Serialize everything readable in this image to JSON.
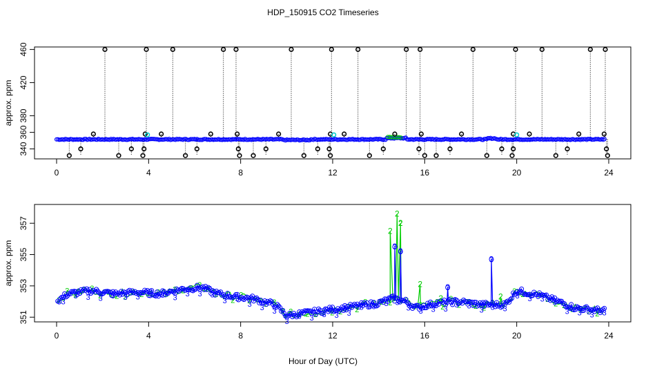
{
  "title": "HDP_150915  CO2 Timeseries",
  "xlabel": "Hour of Day (UTC)",
  "colors": {
    "outlier": "#000000",
    "series1": "#0000ff",
    "series2": "#00cc00",
    "highlight": "#00cccc",
    "axes": "#000000"
  },
  "chart_data": [
    {
      "type": "scatter",
      "name_tag": "top",
      "ylabel": "approx. ppm",
      "xlim": [
        -0.96,
        24.96
      ],
      "ylim": [
        328,
        463
      ],
      "x_ticks": [
        0,
        4,
        8,
        12,
        16,
        20,
        24
      ],
      "y_ticks": [
        340,
        360,
        380,
        420,
        460
      ],
      "baseline": 351.5,
      "outliers_high": [
        2.1,
        3.9,
        5.05,
        7.25,
        7.8,
        10.2,
        11.95,
        13.1,
        15.2,
        15.8,
        18.1,
        19.95,
        21.1,
        23.2,
        23.85
      ],
      "points_358": [
        1.6,
        3.85,
        4.55,
        6.7,
        7.85,
        9.65,
        11.9,
        12.5,
        14.7,
        15.85,
        17.6,
        19.85,
        20.55,
        22.7,
        23.8
      ],
      "points_340": [
        1.05,
        3.25,
        3.8,
        6.1,
        7.9,
        9.1,
        11.35,
        11.85,
        14.2,
        15.75,
        17.1,
        19.35,
        19.85,
        22.2,
        23.9
      ],
      "points_332": [
        0.55,
        2.7,
        3.75,
        5.6,
        7.95,
        8.55,
        10.75,
        11.9,
        13.6,
        16.0,
        16.5,
        18.7,
        19.8,
        21.7,
        23.95
      ],
      "cyan_points": [
        [
          3.95,
          357
        ],
        [
          12.05,
          357
        ],
        [
          20.0,
          357
        ]
      ]
    },
    {
      "type": "line",
      "name_tag": "bottom",
      "ylabel": "approx. ppm",
      "xlim": [
        -0.96,
        24.96
      ],
      "ylim": [
        350.7,
        358.2
      ],
      "x_ticks": [
        0,
        4,
        8,
        12,
        16,
        20,
        24
      ],
      "y_ticks": [
        351,
        353,
        355,
        357
      ],
      "series_label_1": "3",
      "series_label_2": "2",
      "series_1_profile": [
        [
          0,
          352.0
        ],
        [
          0.5,
          352.5
        ],
        [
          1.5,
          352.7
        ],
        [
          2.5,
          352.5
        ],
        [
          3.5,
          352.6
        ],
        [
          4.5,
          352.5
        ],
        [
          5.5,
          352.8
        ],
        [
          6.3,
          352.9
        ],
        [
          7.0,
          352.5
        ],
        [
          7.8,
          352.3
        ],
        [
          8.5,
          352.2
        ],
        [
          9.5,
          351.8
        ],
        [
          10.0,
          351.1
        ],
        [
          11.0,
          351.3
        ],
        [
          12.0,
          351.5
        ],
        [
          13.0,
          351.7
        ],
        [
          14.0,
          351.9
        ],
        [
          14.6,
          352.2
        ],
        [
          15.2,
          352.0
        ],
        [
          15.6,
          351.6
        ],
        [
          16.5,
          351.9
        ],
        [
          17.5,
          352.0
        ],
        [
          18.5,
          351.8
        ],
        [
          19.5,
          351.8
        ],
        [
          20.0,
          352.7
        ],
        [
          21.0,
          352.4
        ],
        [
          22.0,
          351.9
        ],
        [
          22.5,
          351.6
        ],
        [
          23.8,
          351.4
        ]
      ],
      "series_1_spikes": [
        [
          14.7,
          355.5
        ],
        [
          14.95,
          355.2
        ],
        [
          17.0,
          352.9
        ],
        [
          18.9,
          354.7
        ]
      ],
      "series_2_spikes": [
        [
          14.5,
          356.5
        ],
        [
          14.8,
          357.6
        ],
        [
          14.95,
          357.0
        ],
        [
          15.8,
          353.1
        ],
        [
          16.7,
          352.2
        ],
        [
          19.3,
          352.3
        ]
      ]
    }
  ]
}
